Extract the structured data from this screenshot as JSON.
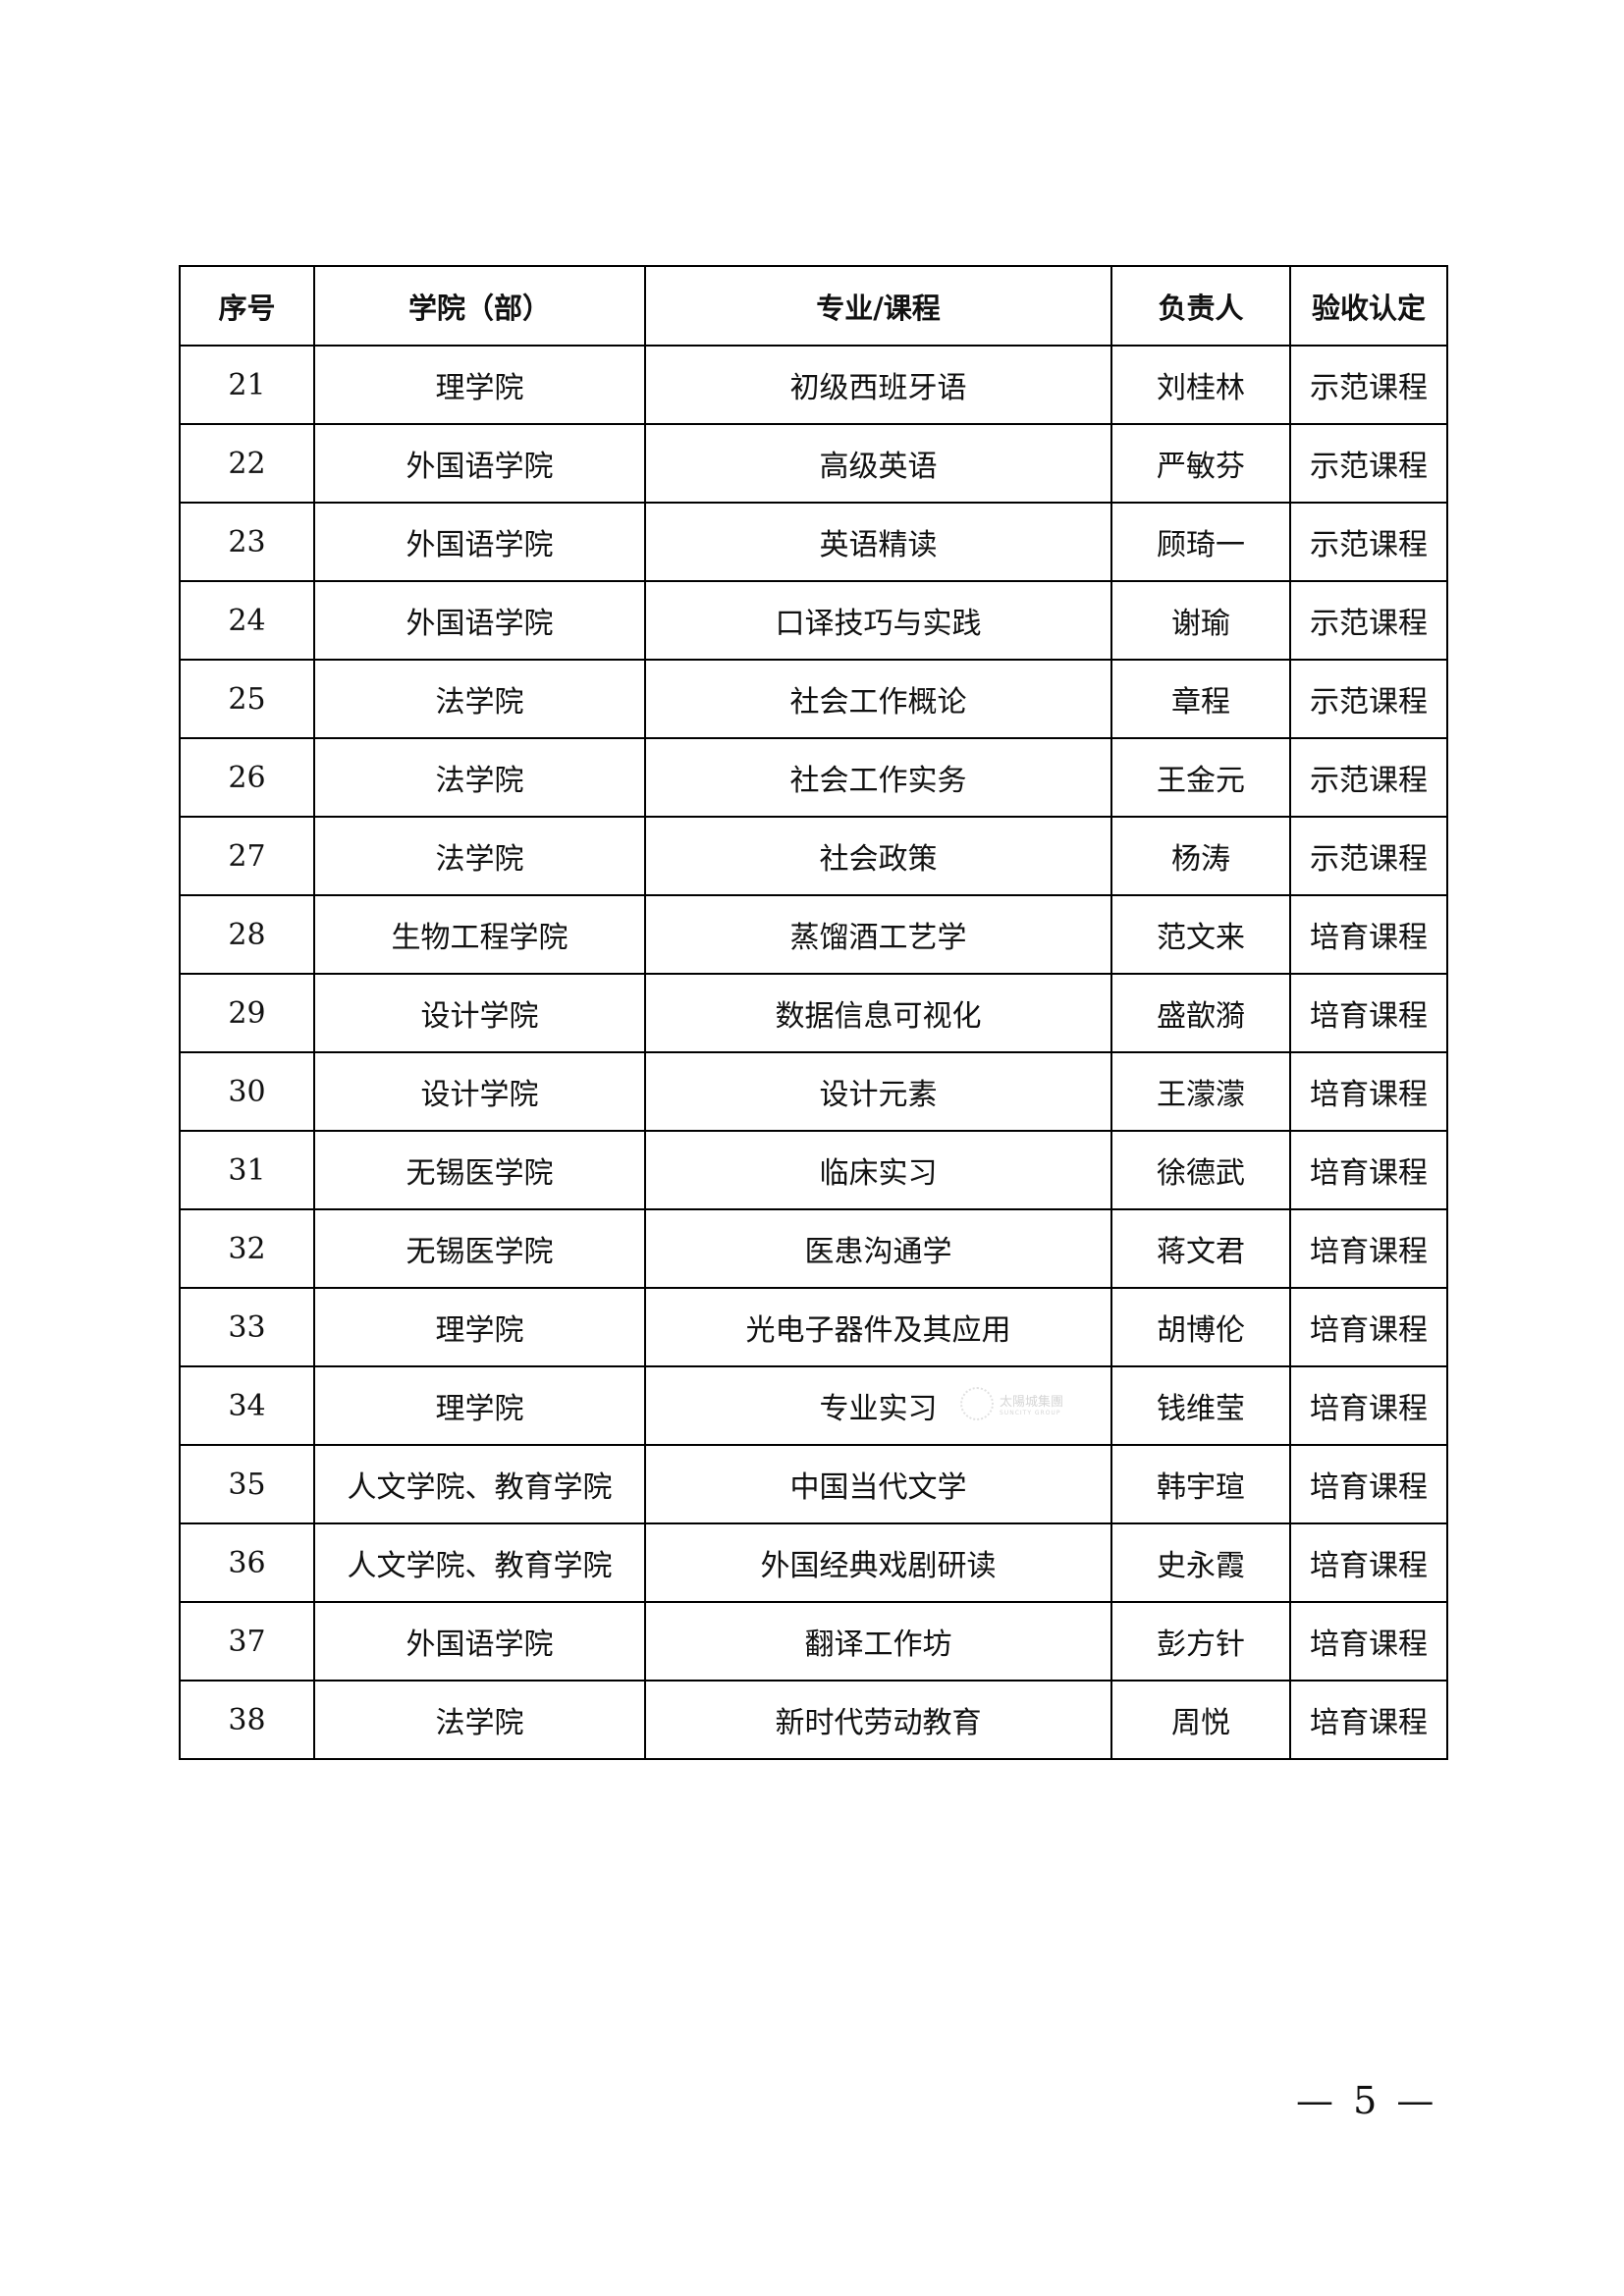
{
  "table": {
    "headers": [
      "序号",
      "学院（部）",
      "专业/课程",
      "负责人",
      "验收认定"
    ],
    "rows": [
      [
        "21",
        "理学院",
        "初级西班牙语",
        "刘桂林",
        "示范课程"
      ],
      [
        "22",
        "外国语学院",
        "高级英语",
        "严敏芬",
        "示范课程"
      ],
      [
        "23",
        "外国语学院",
        "英语精读",
        "顾琦一",
        "示范课程"
      ],
      [
        "24",
        "外国语学院",
        "口译技巧与实践",
        "谢瑜",
        "示范课程"
      ],
      [
        "25",
        "法学院",
        "社会工作概论",
        "章程",
        "示范课程"
      ],
      [
        "26",
        "法学院",
        "社会工作实务",
        "王金元",
        "示范课程"
      ],
      [
        "27",
        "法学院",
        "社会政策",
        "杨涛",
        "示范课程"
      ],
      [
        "28",
        "生物工程学院",
        "蒸馏酒工艺学",
        "范文来",
        "培育课程"
      ],
      [
        "29",
        "设计学院",
        "数据信息可视化",
        "盛歆漪",
        "培育课程"
      ],
      [
        "30",
        "设计学院",
        "设计元素",
        "王濛濛",
        "培育课程"
      ],
      [
        "31",
        "无锡医学院",
        "临床实习",
        "徐德武",
        "培育课程"
      ],
      [
        "32",
        "无锡医学院",
        "医患沟通学",
        "蒋文君",
        "培育课程"
      ],
      [
        "33",
        "理学院",
        "光电子器件及其应用",
        "胡博伦",
        "培育课程"
      ],
      [
        "34",
        "理学院",
        "专业实习",
        "钱维莹",
        "培育课程"
      ],
      [
        "35",
        "人文学院、教育学院",
        "中国当代文学",
        "韩宇瑄",
        "培育课程"
      ],
      [
        "36",
        "人文学院、教育学院",
        "外国经典戏剧研读",
        "史永霞",
        "培育课程"
      ],
      [
        "37",
        "外国语学院",
        "翻译工作坊",
        "彭方针",
        "培育课程"
      ],
      [
        "38",
        "法学院",
        "新时代劳动教育",
        "周悦",
        "培育课程"
      ]
    ]
  },
  "watermark": {
    "name": "太陽城集團",
    "sub": "SUNCITY GROUP"
  },
  "page_number": "— 5 —"
}
